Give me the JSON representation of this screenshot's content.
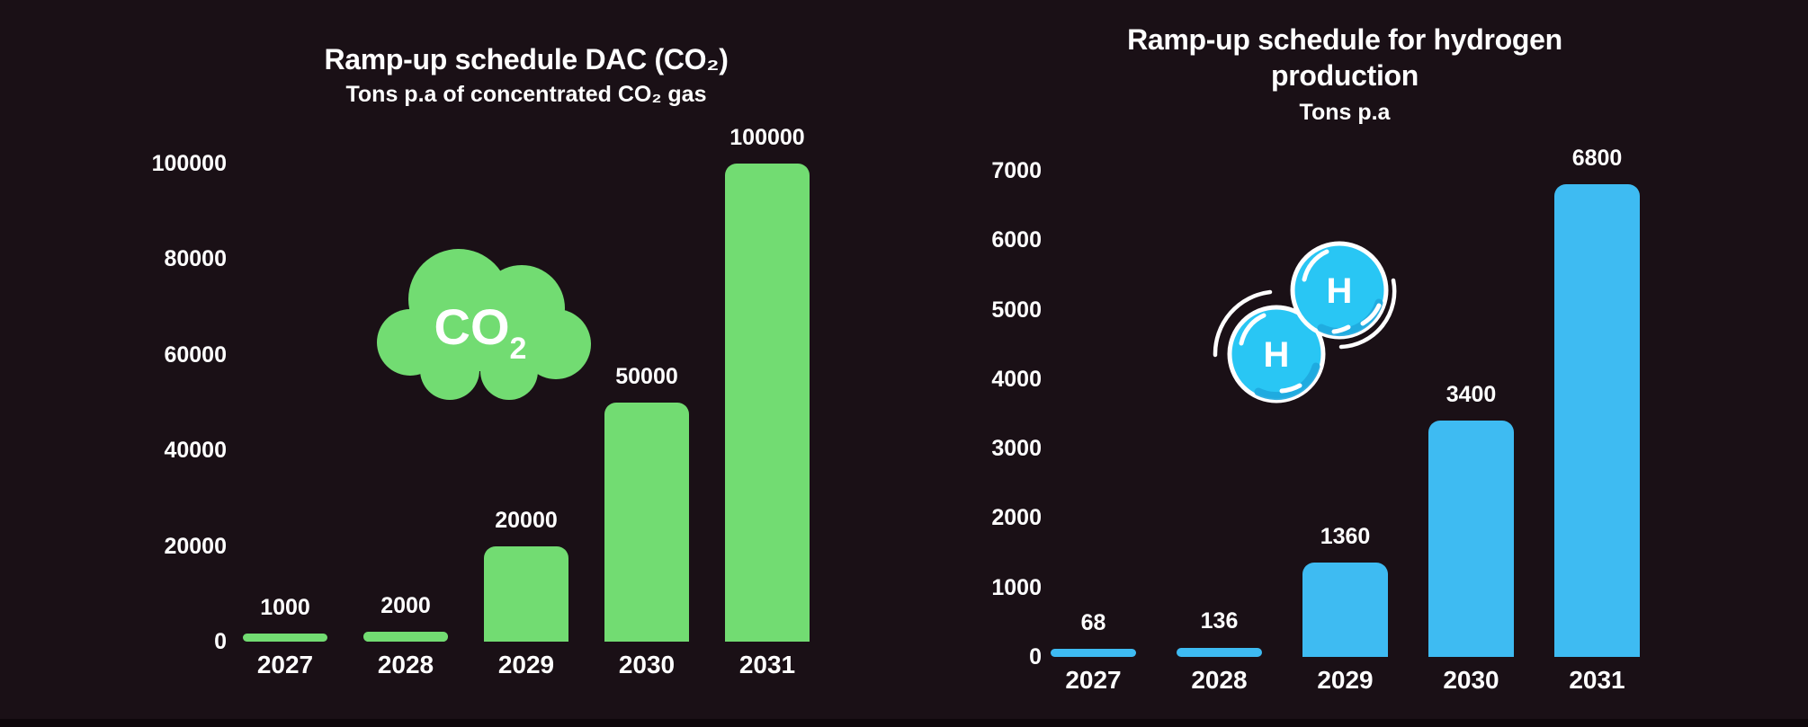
{
  "page": {
    "background_color": "#1A1016",
    "bottom_strip_color": "#0E070B",
    "text_color": "#FFFFFF"
  },
  "chart_data": [
    {
      "type": "bar",
      "title": "Ramp-up schedule DAC (CO₂)",
      "subtitle": "Tons p.a of concentrated CO₂ gas",
      "categories": [
        "2027",
        "2028",
        "2029",
        "2030",
        "2031"
      ],
      "values": [
        1000,
        2000,
        20000,
        50000,
        100000
      ],
      "value_labels": [
        "1000",
        "2000",
        "20000",
        "50000",
        "100000"
      ],
      "yticks": [
        "0",
        "20000",
        "40000",
        "60000",
        "80000",
        "100000"
      ],
      "ytick_step": 20000,
      "ylim": [
        0,
        100000
      ],
      "xlabel": "",
      "ylabel": "",
      "grid": false,
      "legend": false,
      "bar_color": "#72DC72",
      "label_color": "#FFFFFF",
      "icon": {
        "name": "co2-cloud-icon",
        "label_main": "CO",
        "label_sub": "2",
        "fill": "#72DC72",
        "label_color": "#FFFFFF"
      }
    },
    {
      "type": "bar",
      "title": "Ramp-up schedule for hydrogen production",
      "subtitle": "Tons p.a",
      "categories": [
        "2027",
        "2028",
        "2029",
        "2030",
        "2031"
      ],
      "values": [
        68,
        136,
        1360,
        3400,
        6800
      ],
      "value_labels": [
        "68",
        "136",
        "1360",
        "3400",
        "6800"
      ],
      "yticks": [
        "0",
        "1000",
        "2000",
        "3000",
        "4000",
        "5000",
        "6000",
        "7000"
      ],
      "ytick_step": 1000,
      "ylim": [
        0,
        7000
      ],
      "xlabel": "",
      "ylabel": "",
      "grid": false,
      "legend": false,
      "bar_color": "#3EBBF2",
      "label_color": "#FFFFFF",
      "icon": {
        "name": "h2-molecule-icon",
        "atom_label_1": "H",
        "atom_label_2": "H",
        "fill": "#29C6F4",
        "shade": "#1FA9DE",
        "accent": "#FFFFFF"
      }
    }
  ]
}
